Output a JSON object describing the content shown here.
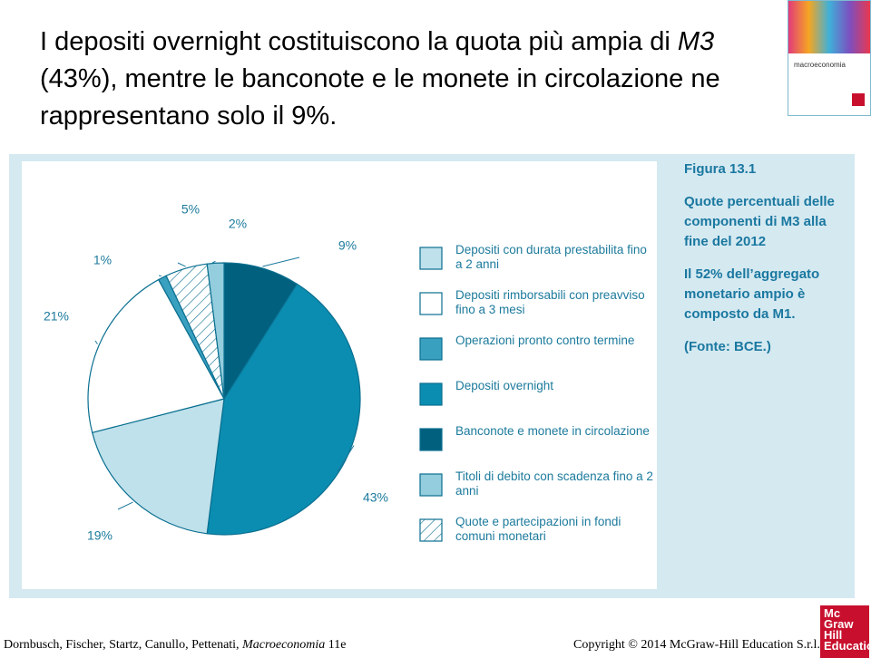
{
  "slide": {
    "heading": [
      "I depositi overnight costituiscono la quota più ampia di ",
      "M3",
      " (43%), mentre le banconote e le monete in circolazione ne rappresentano solo il 9%."
    ],
    "footer_left": [
      "Dornbusch, Fischer, Startz, Canullo, Pettenati, ",
      "Macroeconomia",
      " 11e"
    ],
    "footer_right": "Copyright © 2014 McGraw-Hill Education S.r.l.",
    "logo": [
      "Mc",
      "Graw",
      "Hill",
      "Education"
    ],
    "cover_title": "macroeconomia"
  },
  "chart_data": {
    "type": "pie",
    "caption": [
      "Figura 13.1",
      "Quote percentuali delle componenti di M3 alla fine del 2012",
      "Il 52% dell’aggregato monetario ampio è composto da M1.",
      "(Fonte: BCE.)"
    ],
    "categories": [
      "Banconote e monete in circolazione",
      "Depositi overnight",
      "Depositi con durata prestabilita fino a 2 anni",
      "Depositi rimborsabili con preavviso fino a 3 mesi",
      "Operazioni pronto contro termine",
      "Quote e partecipazioni in fondi comuni monetari",
      "Titoli di debito con scadenza fino a 2 anni"
    ],
    "values": [
      9,
      43,
      19,
      21,
      1,
      5,
      2
    ],
    "value_labels": [
      "9%",
      "43%",
      "19%",
      "21%",
      "1%",
      "5%",
      "2%"
    ],
    "colors": [
      "#00607e",
      "#0a8db0",
      "#bfe1eb",
      "#ffffff",
      "#3aa0c0",
      "hatch",
      "#94cddd"
    ],
    "legend_order": [
      2,
      3,
      4,
      1,
      0,
      6,
      5
    ]
  }
}
